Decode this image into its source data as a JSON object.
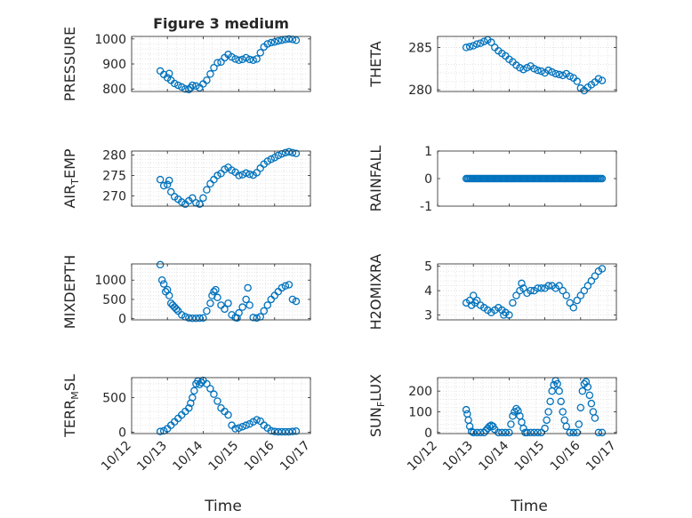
{
  "figure": {
    "title": "Figure 3 medium",
    "xlabel_left": "Time",
    "xlabel_right": "Time"
  },
  "colors": {
    "marker": "#0072BD",
    "axis": "#262626",
    "grid": "#d9d9d9",
    "background": "#ffffff"
  },
  "chart_data": [
    {
      "type": "scatter",
      "ylabel": "PRESSURE",
      "title": "Figure 3 medium",
      "xlim": [
        "10/12",
        "10/17"
      ],
      "ylim": [
        790,
        1010
      ],
      "yticks": [
        800,
        900,
        1000
      ],
      "grid": true,
      "marker": "open-circle",
      "x": [
        12.8,
        12.9,
        13.0,
        13.05,
        13.1,
        13.2,
        13.3,
        13.4,
        13.5,
        13.6,
        13.65,
        13.7,
        13.8,
        13.9,
        14.0,
        14.1,
        14.2,
        14.3,
        14.4,
        14.5,
        14.6,
        14.7,
        14.8,
        14.9,
        15.0,
        15.1,
        15.2,
        15.3,
        15.4,
        15.5,
        15.6,
        15.7,
        15.8,
        15.9,
        16.0,
        16.1,
        16.2,
        16.3,
        16.4,
        16.5,
        16.6
      ],
      "y": [
        872,
        858,
        845,
        862,
        835,
        822,
        815,
        808,
        800,
        798,
        805,
        815,
        812,
        805,
        820,
        835,
        860,
        885,
        905,
        908,
        925,
        938,
        928,
        920,
        915,
        918,
        925,
        918,
        915,
        920,
        945,
        968,
        980,
        985,
        988,
        992,
        995,
        998,
        1000,
        998,
        995
      ]
    },
    {
      "type": "scatter",
      "ylabel": "THETA",
      "xlim": [
        "10/12",
        "10/17"
      ],
      "ylim": [
        279.8,
        286.3
      ],
      "yticks": [
        280,
        285
      ],
      "grid": true,
      "marker": "open-circle",
      "x": [
        12.8,
        12.9,
        13.0,
        13.1,
        13.2,
        13.3,
        13.4,
        13.5,
        13.6,
        13.7,
        13.8,
        13.9,
        14.0,
        14.1,
        14.2,
        14.3,
        14.4,
        14.5,
        14.6,
        14.7,
        14.8,
        14.9,
        15.0,
        15.1,
        15.2,
        15.3,
        15.4,
        15.5,
        15.6,
        15.7,
        15.8,
        15.9,
        16.0,
        16.1,
        16.2,
        16.3,
        16.4,
        16.5,
        16.6
      ],
      "y": [
        285.0,
        285.1,
        285.2,
        285.4,
        285.5,
        285.7,
        285.9,
        285.6,
        285.0,
        284.6,
        284.3,
        284.0,
        283.6,
        283.3,
        282.9,
        282.6,
        282.4,
        282.6,
        282.8,
        282.5,
        282.3,
        282.2,
        282.0,
        282.3,
        282.1,
        281.9,
        281.8,
        281.7,
        281.9,
        281.6,
        281.4,
        281.0,
        280.2,
        279.9,
        280.3,
        280.6,
        280.9,
        281.3,
        281.1
      ]
    },
    {
      "type": "scatter",
      "ylabel": "AIR_TEMP",
      "xlim": [
        "10/12",
        "10/17"
      ],
      "ylim": [
        267.5,
        281
      ],
      "yticks": [
        270,
        275,
        280
      ],
      "grid": true,
      "marker": "open-circle",
      "x": [
        12.8,
        12.9,
        13.0,
        13.05,
        13.1,
        13.2,
        13.3,
        13.4,
        13.5,
        13.6,
        13.7,
        13.8,
        13.9,
        14.0,
        14.1,
        14.2,
        14.3,
        14.4,
        14.5,
        14.6,
        14.7,
        14.8,
        14.9,
        15.0,
        15.1,
        15.2,
        15.3,
        15.4,
        15.5,
        15.6,
        15.7,
        15.8,
        15.9,
        16.0,
        16.1,
        16.2,
        16.3,
        16.4,
        16.5,
        16.6
      ],
      "y": [
        274.0,
        272.5,
        272.8,
        273.8,
        271.0,
        269.8,
        269.2,
        268.5,
        268.0,
        268.8,
        269.5,
        268.3,
        268.0,
        269.5,
        271.5,
        273.0,
        274.0,
        275.0,
        275.5,
        276.5,
        277.0,
        276.3,
        275.8,
        275.0,
        275.2,
        275.6,
        275.3,
        275.1,
        275.7,
        276.8,
        277.8,
        278.5,
        279.0,
        279.4,
        279.9,
        280.3,
        280.6,
        280.8,
        280.6,
        280.4
      ]
    },
    {
      "type": "scatter",
      "ylabel": "RAINFALL",
      "xlim": [
        "10/12",
        "10/17"
      ],
      "ylim": [
        -1,
        1
      ],
      "yticks": [
        -1,
        0,
        1
      ],
      "grid": false,
      "marker": "open-circle",
      "constant_value": 0,
      "x_range": [
        12.8,
        16.6
      ]
    },
    {
      "type": "scatter",
      "ylabel": "MIXDEPTH",
      "xlim": [
        "10/12",
        "10/17"
      ],
      "ylim": [
        -30,
        1420
      ],
      "yticks": [
        0,
        500,
        1000
      ],
      "grid": true,
      "marker": "open-circle",
      "x": [
        12.8,
        12.85,
        12.9,
        12.95,
        13.0,
        13.05,
        13.1,
        13.15,
        13.2,
        13.25,
        13.3,
        13.4,
        13.5,
        13.6,
        13.7,
        13.8,
        13.9,
        14.0,
        14.1,
        14.2,
        14.25,
        14.3,
        14.35,
        14.4,
        14.5,
        14.6,
        14.7,
        14.8,
        14.9,
        14.95,
        15.0,
        15.1,
        15.2,
        15.25,
        15.3,
        15.4,
        15.5,
        15.6,
        15.7,
        15.8,
        15.9,
        16.0,
        16.1,
        16.2,
        16.3,
        16.4,
        16.5,
        16.6
      ],
      "y": [
        1400,
        1000,
        900,
        700,
        750,
        600,
        400,
        350,
        300,
        250,
        200,
        100,
        50,
        20,
        10,
        10,
        15,
        20,
        200,
        400,
        600,
        700,
        750,
        550,
        350,
        250,
        400,
        100,
        30,
        20,
        150,
        300,
        500,
        800,
        350,
        30,
        20,
        50,
        200,
        350,
        500,
        600,
        700,
        800,
        850,
        880,
        500,
        450
      ]
    },
    {
      "type": "scatter",
      "ylabel": "H2OMIXRA",
      "xlim": [
        "10/12",
        "10/17"
      ],
      "ylim": [
        2.8,
        5.1
      ],
      "yticks": [
        3,
        4,
        5
      ],
      "grid": true,
      "marker": "open-circle",
      "x": [
        12.8,
        12.9,
        12.95,
        13.0,
        13.05,
        13.1,
        13.2,
        13.3,
        13.4,
        13.5,
        13.6,
        13.7,
        13.8,
        13.85,
        13.9,
        14.0,
        14.1,
        14.2,
        14.3,
        14.35,
        14.4,
        14.5,
        14.6,
        14.7,
        14.8,
        14.9,
        15.0,
        15.1,
        15.2,
        15.3,
        15.4,
        15.5,
        15.6,
        15.7,
        15.8,
        15.9,
        16.0,
        16.1,
        16.2,
        16.3,
        16.4,
        16.5,
        16.6
      ],
      "y": [
        3.5,
        3.6,
        3.4,
        3.8,
        3.5,
        3.6,
        3.4,
        3.3,
        3.2,
        3.1,
        3.2,
        3.3,
        3.2,
        3.0,
        3.1,
        3.0,
        3.5,
        3.8,
        4.0,
        4.3,
        4.1,
        3.9,
        4.0,
        4.0,
        4.1,
        4.1,
        4.1,
        4.2,
        4.2,
        4.1,
        4.2,
        4.0,
        3.8,
        3.5,
        3.3,
        3.6,
        3.8,
        4.0,
        4.2,
        4.4,
        4.6,
        4.8,
        4.9
      ]
    },
    {
      "type": "scatter",
      "ylabel": "TERR_MSL",
      "xlim": [
        "10/12",
        "10/17"
      ],
      "ylim": [
        -20,
        790
      ],
      "yticks": [
        0,
        500
      ],
      "grid": true,
      "marker": "open-circle",
      "x": [
        12.8,
        12.9,
        13.0,
        13.1,
        13.2,
        13.3,
        13.4,
        13.5,
        13.6,
        13.65,
        13.7,
        13.75,
        13.8,
        13.85,
        13.9,
        13.95,
        14.0,
        14.1,
        14.2,
        14.3,
        14.4,
        14.5,
        14.6,
        14.7,
        14.8,
        14.9,
        15.0,
        15.1,
        15.2,
        15.3,
        15.4,
        15.5,
        15.6,
        15.7,
        15.8,
        15.9,
        16.0,
        16.1,
        16.2,
        16.3,
        16.4,
        16.5,
        16.6
      ],
      "y": [
        10,
        20,
        50,
        100,
        150,
        200,
        250,
        300,
        350,
        420,
        500,
        600,
        700,
        740,
        690,
        720,
        750,
        700,
        630,
        550,
        450,
        350,
        300,
        250,
        100,
        50,
        60,
        80,
        100,
        120,
        150,
        180,
        160,
        100,
        60,
        20,
        10,
        5,
        5,
        5,
        5,
        10,
        15
      ]
    },
    {
      "type": "scatter",
      "ylabel": "SUN_FLUX",
      "xlim": [
        "10/12",
        "10/17"
      ],
      "ylim": [
        -5,
        265
      ],
      "yticks": [
        0,
        100,
        200
      ],
      "grid": true,
      "marker": "open-circle",
      "x": [
        12.8,
        12.83,
        12.86,
        12.9,
        12.95,
        13.0,
        13.1,
        13.2,
        13.3,
        13.35,
        13.4,
        13.45,
        13.5,
        13.55,
        13.6,
        13.7,
        13.8,
        13.9,
        14.0,
        14.05,
        14.1,
        14.15,
        14.2,
        14.25,
        14.3,
        14.35,
        14.4,
        14.45,
        14.5,
        14.6,
        14.7,
        14.8,
        14.9,
        15.0,
        15.05,
        15.1,
        15.15,
        15.2,
        15.25,
        15.3,
        15.35,
        15.4,
        15.45,
        15.5,
        15.55,
        15.6,
        15.7,
        15.8,
        15.9,
        15.95,
        16.0,
        16.05,
        16.1,
        16.15,
        16.2,
        16.25,
        16.3,
        16.35,
        16.4,
        16.5,
        16.6
      ],
      "y": [
        110,
        90,
        60,
        30,
        5,
        0,
        0,
        0,
        0,
        10,
        20,
        30,
        35,
        30,
        15,
        0,
        0,
        0,
        0,
        40,
        80,
        100,
        115,
        105,
        80,
        50,
        20,
        0,
        0,
        0,
        0,
        0,
        0,
        20,
        60,
        100,
        150,
        200,
        230,
        250,
        235,
        200,
        150,
        100,
        60,
        30,
        0,
        0,
        0,
        40,
        120,
        200,
        235,
        245,
        220,
        180,
        140,
        100,
        70,
        0,
        0
      ]
    }
  ]
}
